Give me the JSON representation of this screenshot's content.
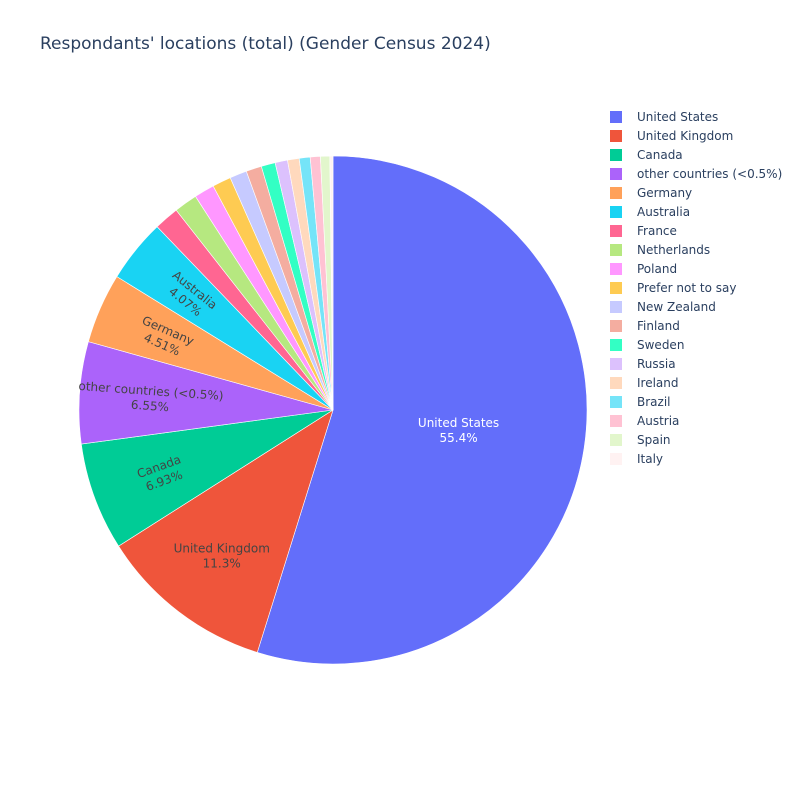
{
  "chart_data": {
    "type": "pie",
    "title": "Respondants' locations (total) (Gender Census 2024)",
    "legend_position": "right",
    "direction": "clockwise",
    "slices": [
      {
        "label": "United States",
        "value": 55.4,
        "percent_label": "55.4%",
        "color": "#636efa",
        "text_color": "#ffffff",
        "show_label": true
      },
      {
        "label": "United Kingdom",
        "value": 11.3,
        "percent_label": "11.3%",
        "color": "#EF553B",
        "text_color": "#444444",
        "show_label": true
      },
      {
        "label": "Canada",
        "value": 6.93,
        "percent_label": "6.93%",
        "color": "#00cc96",
        "text_color": "#444444",
        "show_label": true
      },
      {
        "label": "other countries (<0.5%)",
        "value": 6.55,
        "percent_label": "6.55%",
        "color": "#ab63fa",
        "text_color": "#444444",
        "show_label": true
      },
      {
        "label": "Germany",
        "value": 4.51,
        "percent_label": "4.51%",
        "color": "#FFA15A",
        "text_color": "#444444",
        "show_label": true
      },
      {
        "label": "Australia",
        "value": 4.07,
        "percent_label": "4.07%",
        "color": "#19d3f3",
        "text_color": "#444444",
        "show_label": true
      },
      {
        "label": "France",
        "value": 1.6,
        "color": "#FF6692",
        "show_label": false
      },
      {
        "label": "Netherlands",
        "value": 1.5,
        "color": "#B6E880",
        "show_label": false
      },
      {
        "label": "Poland",
        "value": 1.3,
        "color": "#FF97FF",
        "show_label": false
      },
      {
        "label": "Prefer not to say",
        "value": 1.2,
        "color": "#FECB52",
        "show_label": false
      },
      {
        "label": "New Zealand",
        "value": 1.1,
        "color": "#c6caff",
        "show_label": false
      },
      {
        "label": "Finland",
        "value": 1.0,
        "color": "#f4ada0",
        "show_label": false
      },
      {
        "label": "Sweden",
        "value": 0.9,
        "color": "#33ffc4",
        "show_label": false
      },
      {
        "label": "Russia",
        "value": 0.8,
        "color": "#dcc1fd",
        "show_label": false
      },
      {
        "label": "Ireland",
        "value": 0.75,
        "color": "#ffd9bd",
        "show_label": false
      },
      {
        "label": "Brazil",
        "value": 0.7,
        "color": "#75e4f8",
        "show_label": false
      },
      {
        "label": "Austria",
        "value": 0.65,
        "color": "#ffc2d3",
        "show_label": false
      },
      {
        "label": "Spain",
        "value": 0.6,
        "color": "#e2f6cc",
        "show_label": false
      },
      {
        "label": "Italy",
        "value": 0.2,
        "color": "#fff2f2",
        "show_label": false
      }
    ]
  }
}
